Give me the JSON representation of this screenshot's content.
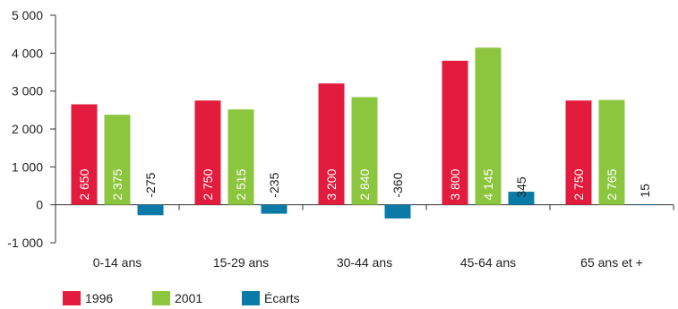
{
  "chart_data": {
    "type": "bar",
    "categories": [
      "0-14 ans",
      "15-29 ans",
      "30-44 ans",
      "45-64 ans",
      "65 ans et +"
    ],
    "series": [
      {
        "name": "1996",
        "values": [
          2650,
          2750,
          3200,
          3800,
          2750
        ],
        "labels": [
          "2 650",
          "2 750",
          "3 200",
          "3 800",
          "2 750"
        ],
        "color": "#e31b3c"
      },
      {
        "name": "2001",
        "values": [
          2375,
          2515,
          2840,
          4145,
          2765
        ],
        "labels": [
          "2 375",
          "2 515",
          "2 840",
          "4 145",
          "2 765"
        ],
        "color": "#8cc63f"
      },
      {
        "name": "Écarts",
        "values": [
          -275,
          -235,
          -360,
          345,
          15
        ],
        "labels": [
          "-275",
          "-235",
          "-360",
          "345",
          "15"
        ],
        "color": "#0a7aa6"
      }
    ],
    "yticks": [
      -1000,
      0,
      1000,
      2000,
      3000,
      4000,
      5000
    ],
    "ytick_labels": [
      "-1 000",
      "0",
      "1 000",
      "2 000",
      "3 000",
      "4 000",
      "5 000"
    ],
    "ylim": [
      -1000,
      5000
    ],
    "legend_position": "bottom-left",
    "grid": false
  }
}
